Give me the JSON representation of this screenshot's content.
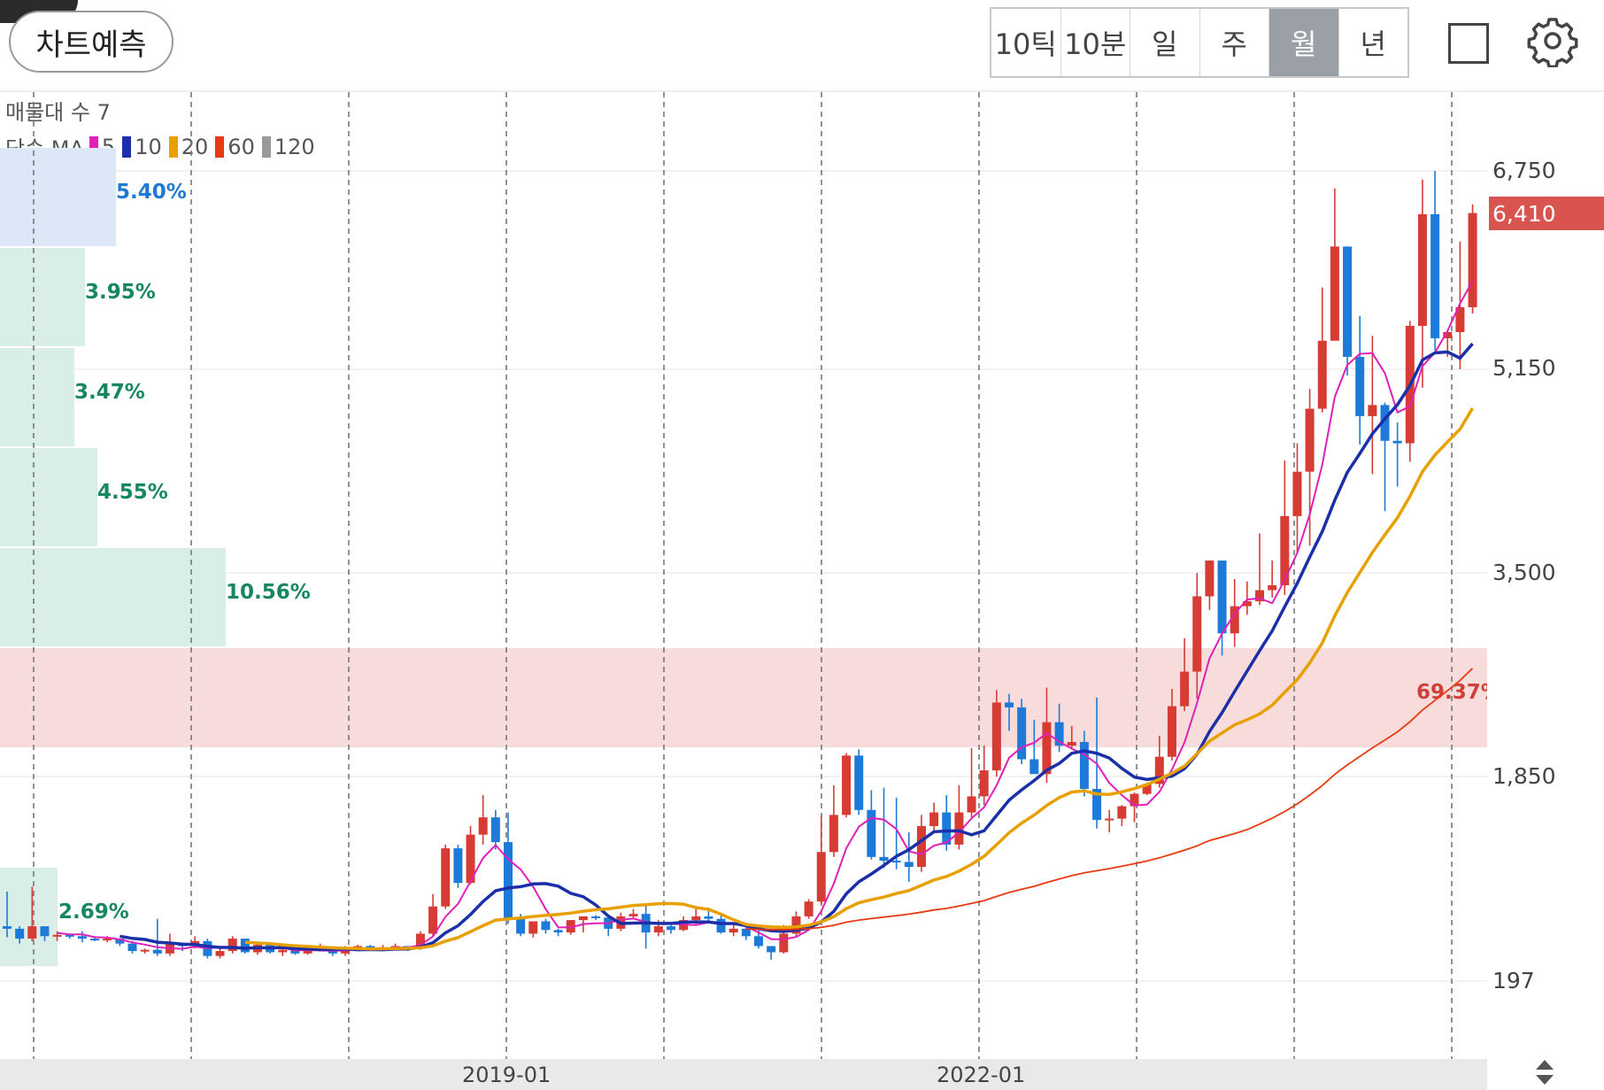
{
  "header": {
    "predict_label": "차트예측",
    "periods": [
      "10틱",
      "10분",
      "일",
      "주",
      "월",
      "년"
    ],
    "active_period": "월",
    "fullscreen_icon": "square-icon",
    "settings_icon": "gear-icon"
  },
  "legend": {
    "volume_profile_label": "매물대 수 7",
    "ma_label": "단순 MA",
    "ma_periods": [
      {
        "period": "5",
        "color": "#e020b8"
      },
      {
        "period": "10",
        "color": "#1a2fa8"
      },
      {
        "period": "20",
        "color": "#e8a000"
      },
      {
        "period": "60",
        "color": "#e83a10"
      },
      {
        "period": "120",
        "color": "#9a9a9a"
      }
    ]
  },
  "current_price": "6,410",
  "axis": {
    "y_ticks": [
      "6,750",
      "5,150",
      "3,500",
      "1,850",
      "197"
    ],
    "x_ticks": [
      "2019-01",
      "2022-01"
    ]
  },
  "chart_data": {
    "type": "candlestick",
    "interval": "monthly",
    "y_ticks": [
      6750,
      5150,
      3500,
      1850,
      197
    ],
    "x_ticks": [
      "2019-01",
      "2022-01"
    ],
    "last_price": 6410,
    "volume_profile": [
      {
        "percent": "5.40%",
        "color": "#1f78d1"
      },
      {
        "percent": "3.95%",
        "color": "#16875f"
      },
      {
        "percent": "3.47%",
        "color": "#16875f"
      },
      {
        "percent": "4.55%",
        "color": "#16875f"
      },
      {
        "percent": "10.56%",
        "color": "#16875f"
      },
      {
        "percent": "69.37%",
        "color": "#d0403a"
      },
      {
        "percent": "2.69%",
        "color": "#16875f"
      }
    ],
    "candles": [
      [
        640,
        620,
        920,
        550
      ],
      [
        620,
        540,
        640,
        500
      ],
      [
        540,
        640,
        960,
        520
      ],
      [
        640,
        560,
        640,
        520
      ],
      [
        560,
        570,
        600,
        520
      ],
      [
        570,
        560,
        580,
        540
      ],
      [
        560,
        540,
        600,
        510
      ],
      [
        540,
        530,
        560,
        520
      ],
      [
        530,
        540,
        560,
        510
      ],
      [
        540,
        500,
        540,
        480
      ],
      [
        500,
        440,
        520,
        420
      ],
      [
        440,
        450,
        460,
        420
      ],
      [
        450,
        420,
        700,
        400
      ],
      [
        420,
        500,
        580,
        400
      ],
      [
        500,
        480,
        500,
        440
      ],
      [
        480,
        520,
        560,
        460
      ],
      [
        520,
        400,
        540,
        380
      ],
      [
        400,
        440,
        480,
        380
      ],
      [
        440,
        540,
        560,
        420
      ],
      [
        540,
        430,
        540,
        420
      ],
      [
        430,
        490,
        500,
        410
      ],
      [
        490,
        430,
        500,
        420
      ],
      [
        430,
        450,
        460,
        400
      ],
      [
        450,
        420,
        460,
        410
      ],
      [
        420,
        450,
        460,
        410
      ],
      [
        450,
        470,
        500,
        440
      ],
      [
        470,
        420,
        470,
        400
      ],
      [
        420,
        460,
        480,
        400
      ],
      [
        460,
        480,
        490,
        460
      ],
      [
        480,
        450,
        490,
        440
      ],
      [
        450,
        470,
        490,
        440
      ],
      [
        470,
        480,
        500,
        450
      ],
      [
        480,
        460,
        480,
        440
      ],
      [
        460,
        580,
        600,
        450
      ],
      [
        580,
        800,
        900,
        560
      ],
      [
        800,
        1270,
        1300,
        780
      ],
      [
        1270,
        990,
        1300,
        950
      ],
      [
        990,
        1380,
        1450,
        980
      ],
      [
        1380,
        1520,
        1700,
        1300
      ],
      [
        1520,
        1320,
        1580,
        1260
      ],
      [
        1320,
        700,
        1560,
        660
      ],
      [
        700,
        580,
        740,
        560
      ],
      [
        580,
        680,
        680,
        550
      ],
      [
        680,
        610,
        700,
        580
      ],
      [
        610,
        590,
        620,
        560
      ],
      [
        590,
        690,
        690,
        570
      ],
      [
        690,
        720,
        720,
        590
      ],
      [
        720,
        710,
        730,
        690
      ],
      [
        710,
        620,
        720,
        560
      ],
      [
        620,
        720,
        750,
        600
      ],
      [
        720,
        740,
        780,
        700
      ],
      [
        740,
        590,
        820,
        460
      ],
      [
        590,
        640,
        690,
        560
      ],
      [
        640,
        610,
        650,
        580
      ],
      [
        610,
        690,
        720,
        600
      ],
      [
        690,
        720,
        780,
        650
      ],
      [
        720,
        700,
        790,
        680
      ],
      [
        700,
        590,
        740,
        580
      ],
      [
        590,
        620,
        650,
        560
      ],
      [
        620,
        560,
        640,
        530
      ],
      [
        560,
        480,
        610,
        460
      ],
      [
        480,
        430,
        480,
        370
      ],
      [
        430,
        580,
        650,
        420
      ],
      [
        580,
        720,
        760,
        560
      ],
      [
        720,
        840,
        860,
        700
      ],
      [
        840,
        1240,
        1530,
        820
      ],
      [
        1240,
        1540,
        1780,
        1200
      ],
      [
        1540,
        2020,
        2040,
        1520
      ],
      [
        2020,
        1580,
        2070,
        1540
      ],
      [
        1580,
        1200,
        1740,
        1180
      ],
      [
        1200,
        1170,
        1760,
        1110
      ],
      [
        1170,
        1160,
        1680,
        1100
      ],
      [
        1160,
        1120,
        1400,
        1000
      ],
      [
        1120,
        1450,
        1540,
        1080
      ],
      [
        1450,
        1560,
        1640,
        1400
      ],
      [
        1560,
        1300,
        1700,
        1250
      ],
      [
        1300,
        1560,
        1780,
        1260
      ],
      [
        1560,
        1690,
        2080,
        1520
      ],
      [
        1690,
        1900,
        2100,
        1620
      ],
      [
        1900,
        2450,
        2550,
        1850
      ],
      [
        2450,
        2410,
        2520,
        2220
      ],
      [
        2410,
        1990,
        2480,
        1950
      ],
      [
        1990,
        1870,
        2310,
        1900
      ],
      [
        1870,
        2290,
        2570,
        1800
      ],
      [
        2290,
        2100,
        2440,
        2050
      ],
      [
        2100,
        2130,
        2260,
        2080
      ],
      [
        2130,
        1750,
        2220,
        1690
      ],
      [
        1750,
        1500,
        2490,
        1430
      ],
      [
        1500,
        1510,
        1580,
        1400
      ],
      [
        1510,
        1610,
        1620,
        1450
      ],
      [
        1610,
        1710,
        1720,
        1480
      ],
      [
        1710,
        1790,
        1800,
        1700
      ],
      [
        1790,
        2010,
        2180,
        1760
      ],
      [
        2010,
        2420,
        2560,
        1980
      ],
      [
        2420,
        2700,
        2970,
        2380
      ],
      [
        2700,
        3310,
        3500,
        2480
      ],
      [
        3310,
        3600,
        3590,
        3200
      ],
      [
        3600,
        3010,
        3580,
        2830
      ],
      [
        3010,
        3230,
        3450,
        2900
      ],
      [
        3230,
        3270,
        3430,
        3160
      ],
      [
        3270,
        3360,
        3820,
        3240
      ],
      [
        3360,
        3400,
        3600,
        3300
      ],
      [
        3400,
        3960,
        4410,
        3320
      ],
      [
        3960,
        4320,
        4550,
        3660
      ],
      [
        4320,
        4830,
        4990,
        3720
      ],
      [
        4830,
        5380,
        5810,
        4800
      ],
      [
        5380,
        6140,
        6610,
        5440
      ],
      [
        6140,
        5250,
        6040,
        5100
      ],
      [
        5250,
        4770,
        5580,
        4540
      ],
      [
        4770,
        4860,
        5420,
        4300
      ],
      [
        4860,
        4570,
        4880,
        4000
      ],
      [
        4570,
        4550,
        4720,
        4200
      ],
      [
        4550,
        5500,
        5540,
        4400
      ],
      [
        5500,
        6400,
        6680,
        5000
      ],
      [
        6400,
        5400,
        6750,
        5300
      ],
      [
        5400,
        5450,
        5460,
        5250
      ],
      [
        5450,
        5650,
        6180,
        5150
      ],
      [
        5650,
        6410,
        6480,
        5600
      ]
    ],
    "ma": {
      "5": "computed",
      "10": "computed",
      "20": "computed",
      "60": "computed"
    }
  }
}
